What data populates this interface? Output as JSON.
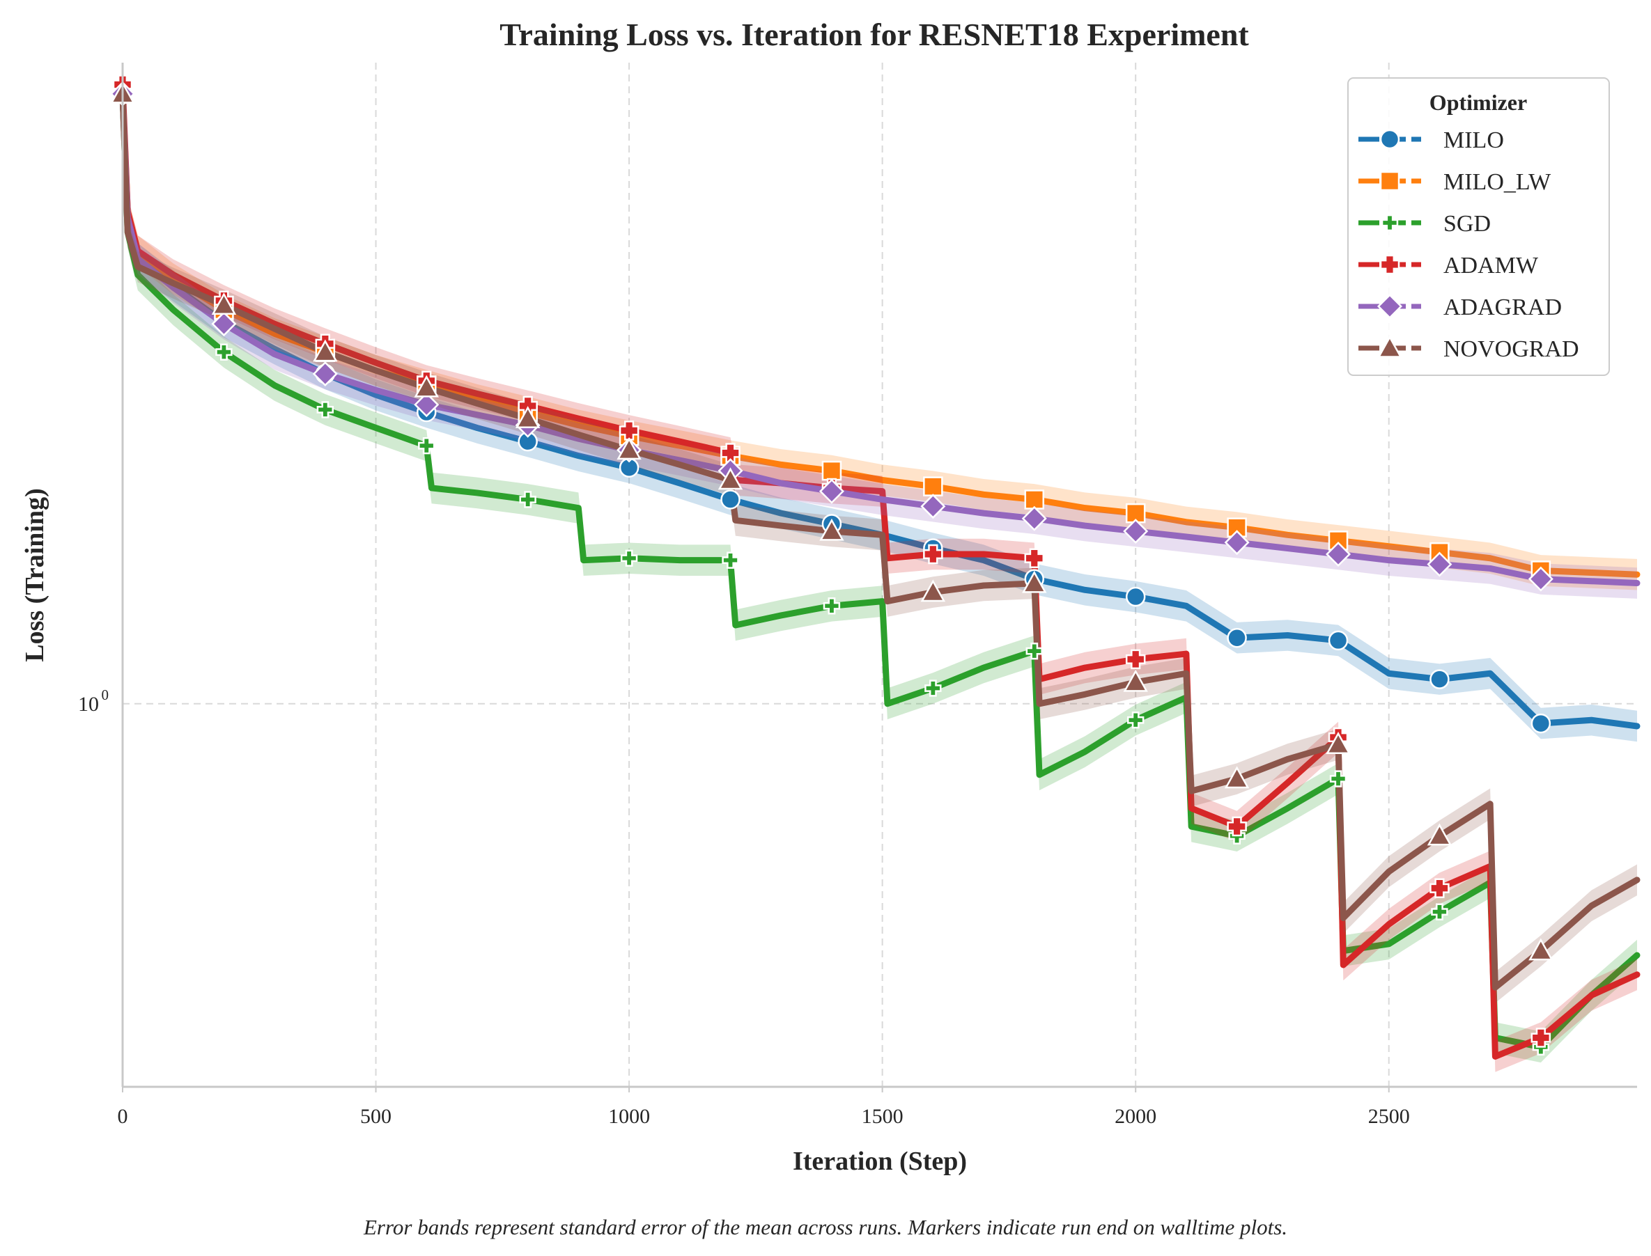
{
  "chart_data": {
    "type": "line",
    "title": "Training Loss vs. Iteration for RESNET18 Experiment",
    "xlabel": "Iteration (Step)",
    "ylabel": "Loss (Training)",
    "xlim": [
      0,
      2990
    ],
    "ylim": [
      0.3,
      7.5
    ],
    "yscale": "log",
    "x_ticks": [
      0,
      500,
      1000,
      1500,
      2000,
      2500
    ],
    "x_tick_labels": [
      "0",
      "500",
      "1000",
      "1500",
      "2000",
      "2500"
    ],
    "y_ticks": [
      1
    ],
    "y_tick_base": "10",
    "y_tick_exp": "0",
    "grid": true,
    "legend": {
      "title": "Optimizer",
      "placement": "top-right"
    },
    "caption": "Error bands represent standard error of the mean across runs. Markers indicate run end on walltime plots.",
    "marker_x": [
      0,
      200,
      400,
      600,
      800,
      1000,
      1200,
      1400,
      1600,
      1800,
      2000,
      2200,
      2400,
      2600,
      2800,
      3000
    ],
    "series": [
      {
        "name": "MILO",
        "color": "#1f77b4",
        "marker": "circle",
        "x": [
          0,
          10,
          30,
          100,
          200,
          300,
          400,
          500,
          600,
          700,
          800,
          900,
          1000,
          1100,
          1200,
          1300,
          1400,
          1500,
          1600,
          1700,
          1800,
          1900,
          2000,
          2100,
          2200,
          2300,
          2400,
          2500,
          2600,
          2700,
          2800,
          2900,
          3000
        ],
        "y": [
          6.8,
          4.6,
          4.05,
          3.72,
          3.32,
          3.05,
          2.82,
          2.64,
          2.5,
          2.38,
          2.28,
          2.18,
          2.1,
          2.0,
          1.9,
          1.82,
          1.76,
          1.7,
          1.63,
          1.57,
          1.48,
          1.43,
          1.4,
          1.36,
          1.23,
          1.24,
          1.22,
          1.1,
          1.08,
          1.1,
          0.94,
          0.95,
          0.93
        ]
      },
      {
        "name": "MILO_LW",
        "color": "#ff7f0e",
        "marker": "square",
        "x": [
          0,
          10,
          30,
          100,
          200,
          300,
          400,
          500,
          600,
          700,
          800,
          900,
          1000,
          1100,
          1200,
          1300,
          1400,
          1500,
          1600,
          1700,
          1800,
          1900,
          2000,
          2100,
          2200,
          2300,
          2400,
          2500,
          2600,
          2700,
          2800,
          2900,
          3000
        ],
        "y": [
          6.8,
          4.7,
          4.15,
          3.8,
          3.45,
          3.2,
          3.02,
          2.85,
          2.72,
          2.6,
          2.5,
          2.4,
          2.32,
          2.25,
          2.18,
          2.12,
          2.08,
          2.02,
          1.98,
          1.93,
          1.9,
          1.85,
          1.82,
          1.77,
          1.74,
          1.7,
          1.67,
          1.64,
          1.61,
          1.58,
          1.52,
          1.51,
          1.5
        ]
      },
      {
        "name": "SGD",
        "color": "#2ca02c",
        "marker": "x",
        "x": [
          0,
          10,
          30,
          100,
          200,
          300,
          400,
          500,
          600,
          610,
          700,
          800,
          900,
          910,
          1000,
          1100,
          1200,
          1210,
          1300,
          1400,
          1500,
          1510,
          1600,
          1700,
          1800,
          1810,
          1900,
          2000,
          2100,
          2110,
          2200,
          2300,
          2400,
          2410,
          2500,
          2600,
          2700,
          2710,
          2800,
          2900,
          3000
        ],
        "y": [
          6.8,
          4.4,
          3.85,
          3.45,
          3.02,
          2.72,
          2.52,
          2.38,
          2.25,
          1.97,
          1.94,
          1.9,
          1.85,
          1.57,
          1.58,
          1.57,
          1.57,
          1.28,
          1.32,
          1.36,
          1.38,
          1.0,
          1.05,
          1.12,
          1.18,
          0.8,
          0.86,
          0.95,
          1.02,
          0.68,
          0.66,
          0.72,
          0.79,
          0.46,
          0.47,
          0.52,
          0.57,
          0.35,
          0.34,
          0.4,
          0.46
        ]
      },
      {
        "name": "ADAMW",
        "color": "#d62728",
        "marker": "plus",
        "x": [
          0,
          10,
          30,
          100,
          200,
          300,
          400,
          500,
          600,
          700,
          800,
          900,
          1000,
          1100,
          1200,
          1210,
          1300,
          1400,
          1500,
          1510,
          1600,
          1700,
          1800,
          1810,
          1900,
          2000,
          2100,
          2110,
          2200,
          2300,
          2400,
          2410,
          2500,
          2600,
          2700,
          2710,
          2800,
          2900,
          3000
        ],
        "y": [
          7.0,
          4.7,
          4.15,
          3.85,
          3.55,
          3.3,
          3.1,
          2.92,
          2.76,
          2.65,
          2.55,
          2.45,
          2.36,
          2.28,
          2.2,
          2.02,
          2.0,
          1.97,
          1.95,
          1.58,
          1.6,
          1.6,
          1.58,
          1.08,
          1.12,
          1.15,
          1.17,
          0.72,
          0.68,
          0.78,
          0.9,
          0.44,
          0.5,
          0.56,
          0.6,
          0.33,
          0.35,
          0.4,
          0.43
        ]
      },
      {
        "name": "ADAGRAD",
        "color": "#9467bd",
        "marker": "diamond",
        "x": [
          0,
          10,
          30,
          100,
          200,
          300,
          400,
          500,
          600,
          700,
          800,
          900,
          1000,
          1100,
          1200,
          1300,
          1400,
          1500,
          1600,
          1700,
          1800,
          1900,
          2000,
          2100,
          2200,
          2300,
          2400,
          2500,
          2600,
          2700,
          2800,
          2900,
          3000
        ],
        "y": [
          6.8,
          4.6,
          4.05,
          3.7,
          3.3,
          3.0,
          2.82,
          2.68,
          2.56,
          2.48,
          2.4,
          2.3,
          2.22,
          2.15,
          2.08,
          2.0,
          1.95,
          1.9,
          1.86,
          1.82,
          1.79,
          1.75,
          1.72,
          1.69,
          1.66,
          1.63,
          1.6,
          1.57,
          1.55,
          1.53,
          1.48,
          1.47,
          1.46
        ]
      },
      {
        "name": "NOVOGRAD",
        "color": "#8c564b",
        "marker": "triangle",
        "x": [
          0,
          10,
          30,
          100,
          200,
          300,
          400,
          500,
          600,
          700,
          800,
          900,
          1000,
          1100,
          1200,
          1210,
          1300,
          1400,
          1500,
          1510,
          1600,
          1700,
          1800,
          1810,
          1900,
          2000,
          2100,
          2110,
          2200,
          2300,
          2400,
          2410,
          2500,
          2600,
          2700,
          2710,
          2800,
          2900,
          3000
        ],
        "y": [
          6.8,
          4.4,
          3.95,
          3.75,
          3.5,
          3.25,
          3.02,
          2.85,
          2.7,
          2.57,
          2.45,
          2.33,
          2.22,
          2.12,
          2.02,
          1.78,
          1.75,
          1.72,
          1.7,
          1.38,
          1.42,
          1.45,
          1.46,
          1.0,
          1.03,
          1.07,
          1.1,
          0.76,
          0.79,
          0.84,
          0.88,
          0.51,
          0.59,
          0.66,
          0.73,
          0.41,
          0.46,
          0.53,
          0.58
        ]
      }
    ]
  }
}
